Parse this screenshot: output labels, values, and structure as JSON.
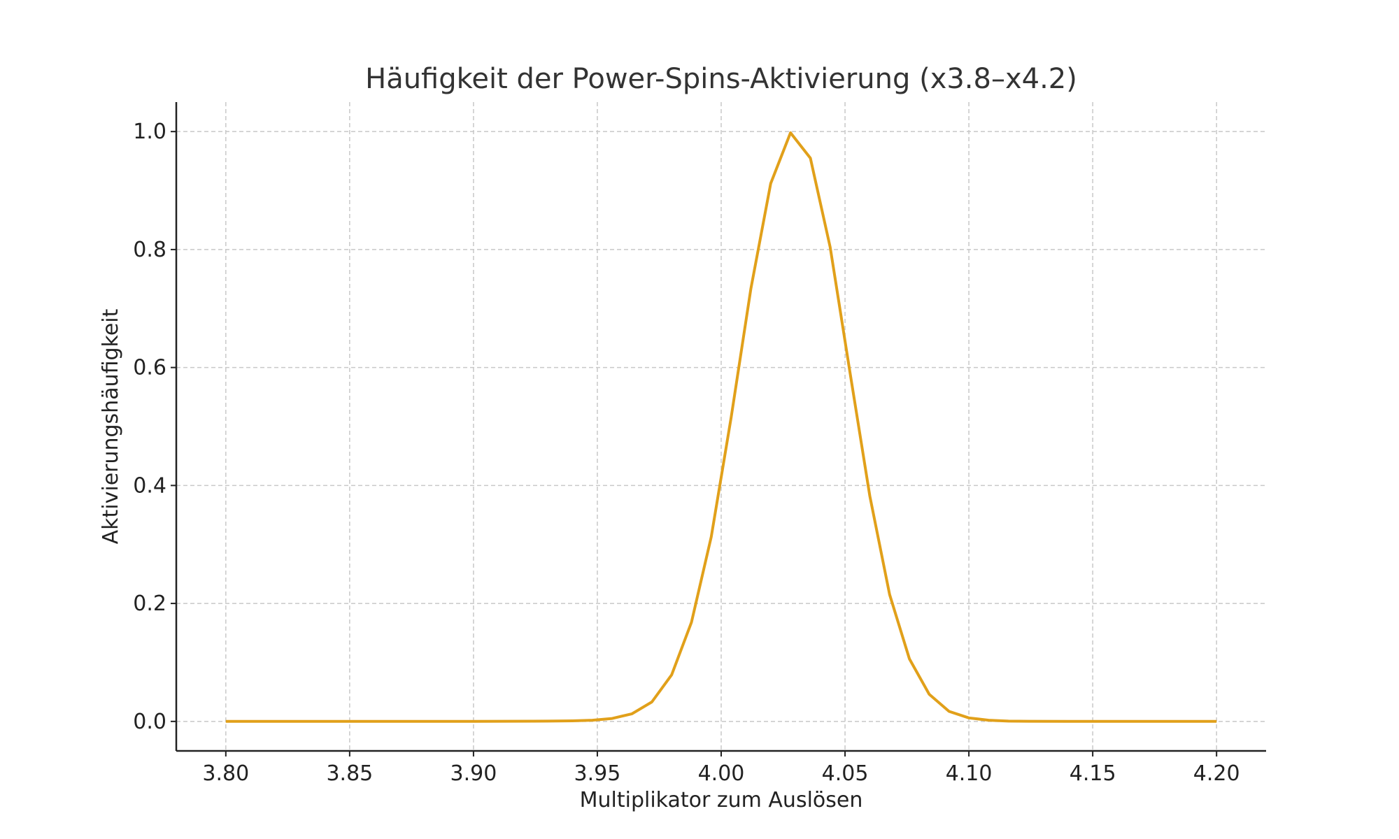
{
  "chart_data": {
    "type": "line",
    "title": "Häufigkeit der Power-Spins-Aktivierung (x3.8–x4.2)",
    "xlabel": "Multiplikator zum Auslösen",
    "ylabel": "Aktivierungshäufigkeit",
    "xlim": [
      3.78,
      4.22
    ],
    "ylim": [
      -0.05,
      1.05
    ],
    "xticks": [
      3.8,
      3.85,
      3.9,
      3.95,
      4.0,
      4.05,
      4.1,
      4.15,
      4.2
    ],
    "xtick_labels": [
      "3.80",
      "3.85",
      "3.90",
      "3.95",
      "4.00",
      "4.05",
      "4.10",
      "4.15",
      "4.20"
    ],
    "yticks": [
      0.0,
      0.2,
      0.4,
      0.6,
      0.8,
      1.0
    ],
    "ytick_labels": [
      "0.0",
      "0.2",
      "0.4",
      "0.6",
      "0.8",
      "1.0"
    ],
    "grid": true,
    "series": [
      {
        "color": "#e1a01a",
        "x": [
          3.8,
          3.9,
          3.93,
          3.94,
          3.948,
          3.956,
          3.964,
          3.972,
          3.98,
          3.988,
          3.996,
          4.004,
          4.012,
          4.02,
          4.028,
          4.036,
          4.044,
          4.052,
          4.06,
          4.068,
          4.076,
          4.084,
          4.092,
          4.1,
          4.108,
          4.116,
          4.124,
          4.14,
          4.2
        ],
        "values": [
          0.0,
          0.0,
          0.0005,
          0.001,
          0.002,
          0.005,
          0.013,
          0.033,
          0.079,
          0.168,
          0.313,
          0.515,
          0.734,
          0.912,
          0.998,
          0.955,
          0.804,
          0.592,
          0.382,
          0.215,
          0.106,
          0.046,
          0.017,
          0.006,
          0.002,
          0.0005,
          0.0002,
          0.0,
          0.0
        ]
      }
    ]
  }
}
